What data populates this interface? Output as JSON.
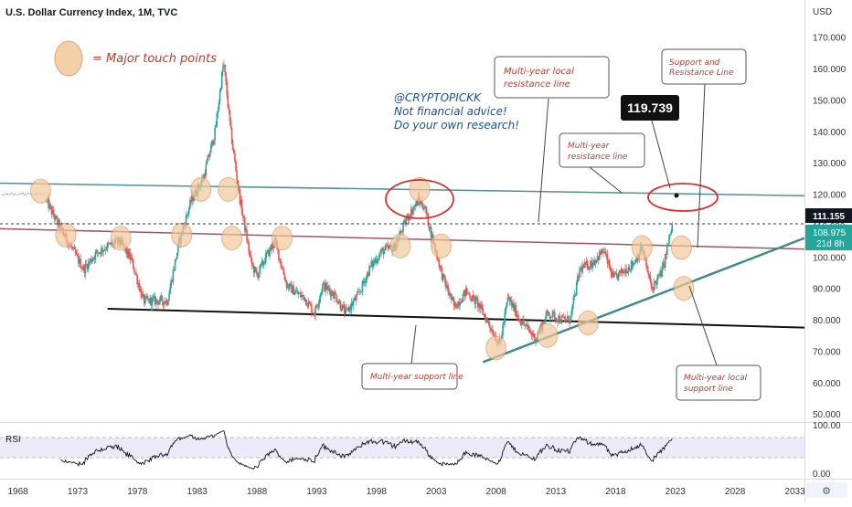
{
  "header": {
    "title": "U.S. Dollar Currency Index, 1M, TVC"
  },
  "price_axis": {
    "currency": "USD",
    "ticks": [
      "170.000",
      "160.000",
      "150.000",
      "140.000",
      "130.000",
      "120.000",
      "110.000",
      "100.000",
      "90.000",
      "80.000",
      "70.000",
      "60.000",
      "50.000"
    ],
    "last_close_tag": "111.155",
    "current_tag": "108.975",
    "countdown": "21d 8h"
  },
  "rsi_panel": {
    "label": "RSI",
    "ticks": [
      "100.00",
      "0.00"
    ]
  },
  "time_axis": {
    "ticks": [
      "1968",
      "1973",
      "1978",
      "1983",
      "1988",
      "1993",
      "1998",
      "2003",
      "2008",
      "2013",
      "2018",
      "2023",
      "2028",
      "2033"
    ]
  },
  "annotations": {
    "legend_text": "= Major touch points",
    "author": "@CRYPTOPICKK",
    "disclaimer_1": "Not financial advice!",
    "disclaimer_2": "Do your own research!",
    "target_value": "119.739",
    "multi_year_local_resistance": [
      "Multi-year local",
      "resistance line"
    ],
    "multi_year_resistance": [
      "Multi-year",
      "resistance line"
    ],
    "support_and_resistance": [
      "Support and",
      "Resistance Line"
    ],
    "multi_year_support": "Multi-year support line",
    "multi_year_local_support": [
      "Multi-year local",
      "support line"
    ]
  },
  "colors": {
    "up_candle": "#26a69a",
    "down_candle": "#ef5350",
    "resistance_line": "#4e8fa0",
    "local_resistance_line": "#a05565",
    "support_line": "#111111",
    "local_support_line": "#3d8a8a",
    "touch_point_fill": "#f2c89a",
    "note_text_red": "#c0392b",
    "note_text_blue": "#1a4f9c"
  },
  "chart_data": {
    "type": "candlestick",
    "title": "U.S. Dollar Currency Index, 1M, TVC",
    "y_unit": "USD",
    "ylim": [
      48,
      176
    ],
    "xlim": [
      1966.5,
      2033.8
    ],
    "close_path": [
      [
        1967.0,
        120
      ],
      [
        1970.0,
        121
      ],
      [
        1971.0,
        113
      ],
      [
        1972.0,
        106
      ],
      [
        1973.5,
        96
      ],
      [
        1974.5,
        101
      ],
      [
        1975.3,
        103
      ],
      [
        1976.5,
        105
      ],
      [
        1977.5,
        99
      ],
      [
        1978.5,
        86
      ],
      [
        1979.5,
        86
      ],
      [
        1980.5,
        86
      ],
      [
        1981.5,
        105
      ],
      [
        1982.5,
        118
      ],
      [
        1983.5,
        125
      ],
      [
        1984.5,
        140
      ],
      [
        1985.2,
        162
      ],
      [
        1985.8,
        140
      ],
      [
        1986.5,
        120
      ],
      [
        1987.5,
        98
      ],
      [
        1988.0,
        94
      ],
      [
        1988.6,
        99
      ],
      [
        1989.5,
        105
      ],
      [
        1990.5,
        91
      ],
      [
        1991.5,
        88
      ],
      [
        1992.0,
        87
      ],
      [
        1992.8,
        82
      ],
      [
        1993.5,
        91
      ],
      [
        1994.5,
        88
      ],
      [
        1995.4,
        82
      ],
      [
        1996.5,
        88
      ],
      [
        1997.5,
        97
      ],
      [
        1998.5,
        102
      ],
      [
        1999.5,
        103
      ],
      [
        2000.5,
        112
      ],
      [
        2001.5,
        118
      ],
      [
        2002.0,
        116
      ],
      [
        2002.8,
        104
      ],
      [
        2003.5,
        94
      ],
      [
        2004.5,
        84
      ],
      [
        2005.5,
        89
      ],
      [
        2006.5,
        85
      ],
      [
        2007.5,
        78
      ],
      [
        2008.3,
        72
      ],
      [
        2009.0,
        87
      ],
      [
        2010.0,
        80
      ],
      [
        2011.3,
        74
      ],
      [
        2012.3,
        82
      ],
      [
        2013.5,
        80
      ],
      [
        2014.2,
        80
      ],
      [
        2015.0,
        96
      ],
      [
        2016.0,
        98
      ],
      [
        2017.0,
        102
      ],
      [
        2017.8,
        93
      ],
      [
        2018.5,
        95
      ],
      [
        2019.5,
        98
      ],
      [
        2020.2,
        103
      ],
      [
        2021.0,
        90
      ],
      [
        2021.7,
        94
      ],
      [
        2022.0,
        97
      ],
      [
        2022.5,
        106
      ],
      [
        2022.8,
        111
      ]
    ],
    "rsi_range": [
      0,
      100
    ],
    "last_close": 111.155,
    "current_price": 108.975,
    "target_price": 119.739,
    "trend_lines": [
      {
        "name": "Multi-year resistance line",
        "from": [
          1966.5,
          123.5
        ],
        "to": [
          2033.8,
          119.5
        ]
      },
      {
        "name": "Multi-year local resistance line",
        "from": [
          1966.5,
          109.0
        ],
        "to": [
          2033.8,
          102.5
        ]
      },
      {
        "name": "Multi-year support line",
        "from": [
          1975.5,
          83.5
        ],
        "to": [
          2033.8,
          77.5
        ]
      },
      {
        "name": "Multi-year local support line",
        "from": [
          2006.9,
          66.5
        ],
        "to": [
          2033.8,
          106.0
        ]
      }
    ],
    "touch_points": [
      [
        1969.9,
        121.0
      ],
      [
        1972.0,
        107.0
      ],
      [
        1976.6,
        106.0
      ],
      [
        1981.7,
        107.0
      ],
      [
        1983.3,
        121.5
      ],
      [
        1985.6,
        121.5
      ],
      [
        1985.9,
        106.0
      ],
      [
        1990.1,
        106.0
      ],
      [
        2000.0,
        103.5
      ],
      [
        2001.6,
        121.5
      ],
      [
        2003.4,
        103.5
      ],
      [
        2008.0,
        71.0
      ],
      [
        2012.3,
        75.0
      ],
      [
        2015.7,
        79.0
      ],
      [
        2020.2,
        103.0
      ],
      [
        2023.5,
        103.0
      ],
      [
        2023.7,
        90.0
      ]
    ]
  }
}
